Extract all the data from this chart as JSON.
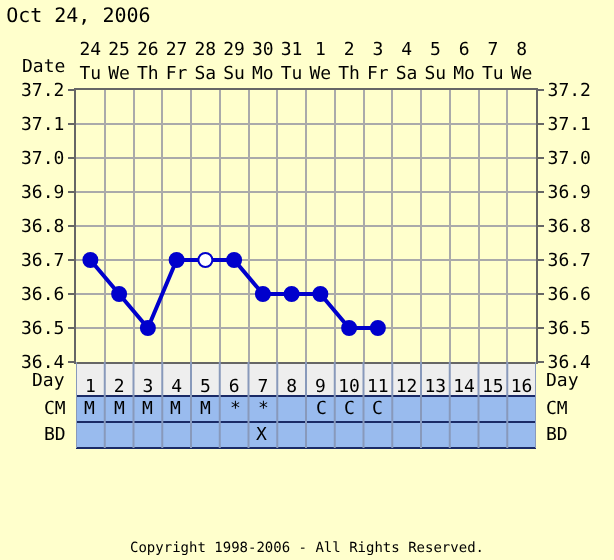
{
  "chart_data": {
    "type": "line",
    "title": "Oct 24, 2006",
    "subtitle": "Copyright 1998-2006 - All Rights Reserved.",
    "xlabel": "Date",
    "x2label": "Day",
    "categories": [
      "24\nTu",
      "25\nWe",
      "26\nTh",
      "27\nFr",
      "28\nSa",
      "29\nSu",
      "30\nMo",
      "31\nTu",
      "1\nWe",
      "2\nTh",
      "3\nFr",
      "4\nSa",
      "5\nSu",
      "6\nMo",
      "7\nTu",
      "8\nWe"
    ],
    "series": [
      {
        "color": "#0000cc",
        "values": [
          36.7,
          36.6,
          36.5,
          36.7,
          36.7,
          36.7,
          36.6,
          36.6,
          36.6,
          36.5,
          36.5,
          null,
          null,
          null,
          null,
          null
        ],
        "colors": [
          "#0000cc",
          "#0000cc",
          "#0000cc",
          "#0000cc",
          "#ffffff",
          "#0000cc",
          "#0000cc",
          "#0000cc",
          "#0000cc",
          "#0000cc",
          "#0000cc",
          "#0000cc",
          "#0000cc",
          "#0000cc",
          "#0000cc",
          "#0000cc"
        ]
      }
    ],
    "x2lim": [
      0.5,
      16.5
    ],
    "x2ticks": [
      1,
      2,
      3,
      4,
      5,
      6,
      7,
      8,
      9,
      10,
      11,
      12,
      13,
      14,
      15,
      16
    ],
    "ylim": [
      36.4,
      37.2
    ],
    "yticks": [
      36.4,
      36.5,
      36.6,
      36.7,
      36.8,
      36.9,
      {
        "value": 37,
        "label": "37.0"
      },
      37.1,
      37.2
    ],
    "y2lim": [
      36.4,
      37.2
    ],
    "y2ticks": [
      36.4,
      36.5,
      36.6,
      36.7,
      36.8,
      36.9,
      {
        "value": 37,
        "label": "37.0"
      },
      37.1,
      37.2
    ],
    "annotations": [
      "CM",
      "M",
      "M",
      "M",
      "M",
      "M",
      "*",
      "*",
      null,
      "C",
      "C",
      "C",
      null,
      null,
      null,
      null,
      null,
      "BD",
      null,
      null,
      null,
      null,
      null,
      null,
      "X",
      null,
      null,
      null,
      null,
      null,
      null,
      null,
      null,
      null
    ],
    "grid": true,
    "marker": "circle",
    "line_style": "solid"
  }
}
